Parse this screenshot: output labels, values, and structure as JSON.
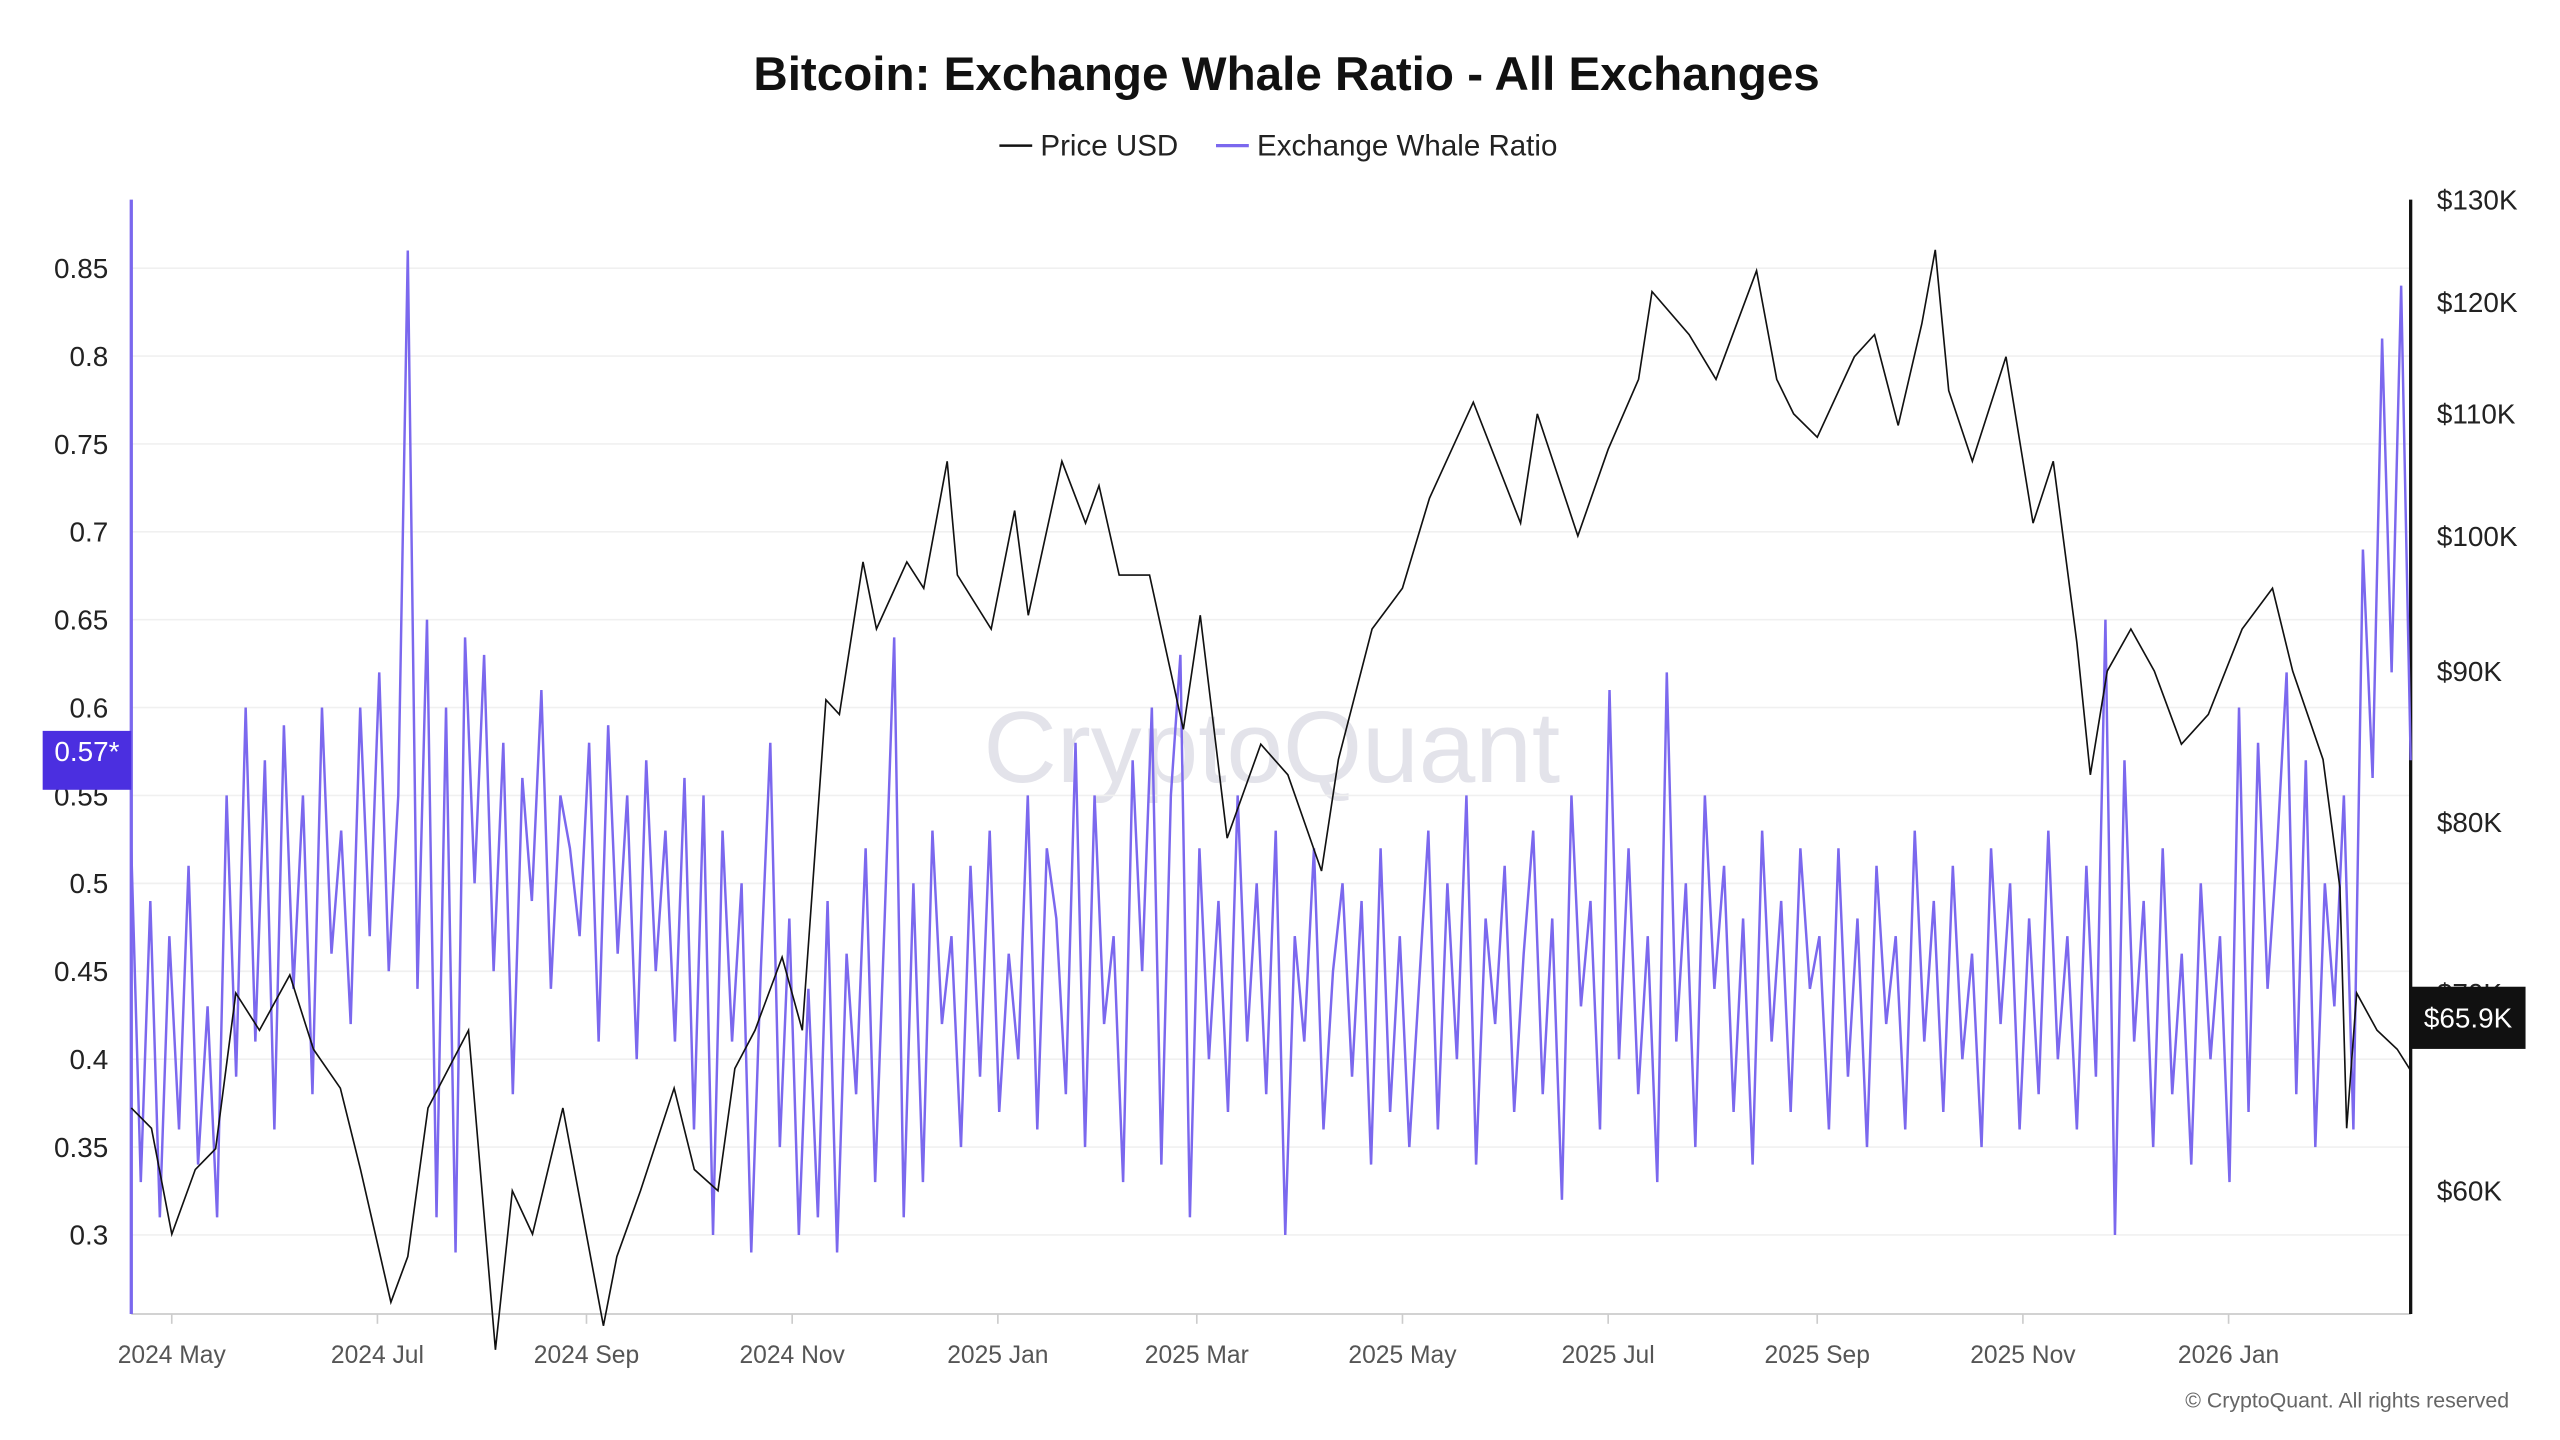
{
  "chart_data": {
    "type": "line",
    "title": "Bitcoin: Exchange Whale Ratio - All Exchanges",
    "legend": {
      "position": "top-center",
      "items": [
        "Price USD",
        "Exchange Whale Ratio"
      ]
    },
    "colors": {
      "price": "#111111",
      "whale": "#7b68ee",
      "badge_left": "#4b2fe0",
      "badge_right": "#111111"
    },
    "x_range": [
      "2024-04-19",
      "2026-02-24"
    ],
    "x_ticks": [
      {
        "date": "2024-05-01",
        "label": "2024 May"
      },
      {
        "date": "2024-07-01",
        "label": "2024 Jul"
      },
      {
        "date": "2024-09-01",
        "label": "2024 Sep"
      },
      {
        "date": "2024-11-01",
        "label": "2024 Nov"
      },
      {
        "date": "2025-01-01",
        "label": "2025 Jan"
      },
      {
        "date": "2025-03-01",
        "label": "2025 Mar"
      },
      {
        "date": "2025-05-01",
        "label": "2025 May"
      },
      {
        "date": "2025-07-01",
        "label": "2025 Jul"
      },
      {
        "date": "2025-09-01",
        "label": "2025 Sep"
      },
      {
        "date": "2025-11-01",
        "label": "2025 Nov"
      },
      {
        "date": "2026-01-01",
        "label": "2026 Jan"
      }
    ],
    "left_axis": {
      "ylim": [
        0.255,
        0.889
      ],
      "ticks": [
        0.3,
        0.35,
        0.4,
        0.45,
        0.5,
        0.55,
        0.6,
        0.65,
        0.7,
        0.75,
        0.8,
        0.85
      ]
    },
    "right_axis": {
      "scale": "log",
      "ylim": [
        54.5,
        130
      ],
      "ticks": [
        {
          "value": 60,
          "label": "$60K"
        },
        {
          "value": 70,
          "label": "$70K"
        },
        {
          "value": 80,
          "label": "$80K"
        },
        {
          "value": 90,
          "label": "$90K"
        },
        {
          "value": 100,
          "label": "$100K"
        },
        {
          "value": 110,
          "label": "$110K"
        },
        {
          "value": 120,
          "label": "$120K"
        },
        {
          "value": 130,
          "label": "$130K"
        }
      ]
    },
    "grid": "horizontal",
    "current_labels": {
      "whale": "0.57*",
      "price": "$65.9K"
    },
    "price_series_kusd": [
      [
        "2024-04-19",
        64
      ],
      [
        "2024-04-25",
        63
      ],
      [
        "2024-05-01",
        58
      ],
      [
        "2024-05-08",
        61
      ],
      [
        "2024-05-14",
        62
      ],
      [
        "2024-05-20",
        70
      ],
      [
        "2024-05-27",
        68
      ],
      [
        "2024-06-05",
        71
      ],
      [
        "2024-06-12",
        67
      ],
      [
        "2024-06-20",
        65
      ],
      [
        "2024-06-26",
        61
      ],
      [
        "2024-07-05",
        55
      ],
      [
        "2024-07-10",
        57
      ],
      [
        "2024-07-16",
        64
      ],
      [
        "2024-07-28",
        68
      ],
      [
        "2024-08-05",
        53
      ],
      [
        "2024-08-10",
        60
      ],
      [
        "2024-08-16",
        58
      ],
      [
        "2024-08-25",
        64
      ],
      [
        "2024-09-06",
        54
      ],
      [
        "2024-09-10",
        57
      ],
      [
        "2024-09-17",
        60
      ],
      [
        "2024-09-27",
        65
      ],
      [
        "2024-10-03",
        61
      ],
      [
        "2024-10-10",
        60
      ],
      [
        "2024-10-15",
        66
      ],
      [
        "2024-10-21",
        68
      ],
      [
        "2024-10-29",
        72
      ],
      [
        "2024-11-04",
        68
      ],
      [
        "2024-11-11",
        88
      ],
      [
        "2024-11-15",
        87
      ],
      [
        "2024-11-22",
        98
      ],
      [
        "2024-11-26",
        93
      ],
      [
        "2024-12-05",
        98
      ],
      [
        "2024-12-10",
        96
      ],
      [
        "2024-12-17",
        106
      ],
      [
        "2024-12-20",
        97
      ],
      [
        "2024-12-30",
        93
      ],
      [
        "2025-01-06",
        102
      ],
      [
        "2025-01-10",
        94
      ],
      [
        "2025-01-20",
        106
      ],
      [
        "2025-01-27",
        101
      ],
      [
        "2025-01-31",
        104
      ],
      [
        "2025-02-06",
        97
      ],
      [
        "2025-02-15",
        97
      ],
      [
        "2025-02-25",
        86
      ],
      [
        "2025-03-02",
        94
      ],
      [
        "2025-03-10",
        79
      ],
      [
        "2025-03-20",
        85
      ],
      [
        "2025-03-28",
        83
      ],
      [
        "2025-04-07",
        77
      ],
      [
        "2025-04-12",
        84
      ],
      [
        "2025-04-22",
        93
      ],
      [
        "2025-05-01",
        96
      ],
      [
        "2025-05-09",
        103
      ],
      [
        "2025-05-22",
        111
      ],
      [
        "2025-06-05",
        101
      ],
      [
        "2025-06-10",
        110
      ],
      [
        "2025-06-22",
        100
      ],
      [
        "2025-07-01",
        107
      ],
      [
        "2025-07-10",
        113
      ],
      [
        "2025-07-14",
        121
      ],
      [
        "2025-07-25",
        117
      ],
      [
        "2025-08-02",
        113
      ],
      [
        "2025-08-14",
        123
      ],
      [
        "2025-08-20",
        113
      ],
      [
        "2025-08-25",
        110
      ],
      [
        "2025-09-01",
        108
      ],
      [
        "2025-09-12",
        115
      ],
      [
        "2025-09-18",
        117
      ],
      [
        "2025-09-25",
        109
      ],
      [
        "2025-10-02",
        118
      ],
      [
        "2025-10-06",
        125
      ],
      [
        "2025-10-10",
        112
      ],
      [
        "2025-10-17",
        106
      ],
      [
        "2025-10-27",
        115
      ],
      [
        "2025-11-04",
        101
      ],
      [
        "2025-11-10",
        106
      ],
      [
        "2025-11-17",
        92
      ],
      [
        "2025-11-21",
        83
      ],
      [
        "2025-11-26",
        90
      ],
      [
        "2025-12-03",
        93
      ],
      [
        "2025-12-10",
        90
      ],
      [
        "2025-12-18",
        85
      ],
      [
        "2025-12-26",
        87
      ],
      [
        "2026-01-05",
        93
      ],
      [
        "2026-01-14",
        96
      ],
      [
        "2026-01-20",
        90
      ],
      [
        "2026-01-29",
        84
      ],
      [
        "2026-02-03",
        76
      ],
      [
        "2026-02-05",
        63
      ],
      [
        "2026-02-08",
        70
      ],
      [
        "2026-02-14",
        68
      ],
      [
        "2026-02-20",
        67
      ],
      [
        "2026-02-24",
        65.9
      ]
    ],
    "whale_series": [
      0.52,
      0.33,
      0.49,
      0.31,
      0.47,
      0.36,
      0.51,
      0.34,
      0.43,
      0.31,
      0.55,
      0.39,
      0.6,
      0.41,
      0.57,
      0.36,
      0.59,
      0.44,
      0.55,
      0.38,
      0.6,
      0.46,
      0.53,
      0.42,
      0.6,
      0.47,
      0.62,
      0.45,
      0.55,
      0.86,
      0.44,
      0.65,
      0.31,
      0.6,
      0.29,
      0.64,
      0.5,
      0.63,
      0.45,
      0.58,
      0.38,
      0.56,
      0.49,
      0.61,
      0.44,
      0.55,
      0.52,
      0.47,
      0.58,
      0.41,
      0.59,
      0.46,
      0.55,
      0.4,
      0.57,
      0.45,
      0.53,
      0.41,
      0.56,
      0.36,
      0.55,
      0.3,
      0.53,
      0.41,
      0.5,
      0.29,
      0.45,
      0.58,
      0.35,
      0.48,
      0.3,
      0.44,
      0.31,
      0.49,
      0.29,
      0.46,
      0.38,
      0.52,
      0.33,
      0.48,
      0.64,
      0.31,
      0.5,
      0.33,
      0.53,
      0.42,
      0.47,
      0.35,
      0.51,
      0.39,
      0.53,
      0.37,
      0.46,
      0.4,
      0.55,
      0.36,
      0.52,
      0.48,
      0.38,
      0.58,
      0.35,
      0.55,
      0.42,
      0.47,
      0.33,
      0.57,
      0.45,
      0.6,
      0.34,
      0.55,
      0.63,
      0.31,
      0.52,
      0.4,
      0.49,
      0.37,
      0.55,
      0.41,
      0.5,
      0.38,
      0.53,
      0.3,
      0.47,
      0.41,
      0.52,
      0.36,
      0.45,
      0.5,
      0.39,
      0.49,
      0.34,
      0.52,
      0.37,
      0.47,
      0.35,
      0.44,
      0.53,
      0.36,
      0.5,
      0.4,
      0.55,
      0.34,
      0.48,
      0.42,
      0.51,
      0.37,
      0.46,
      0.53,
      0.38,
      0.48,
      0.32,
      0.55,
      0.43,
      0.49,
      0.36,
      0.61,
      0.4,
      0.52,
      0.38,
      0.47,
      0.33,
      0.62,
      0.41,
      0.5,
      0.35,
      0.55,
      0.44,
      0.51,
      0.37,
      0.48,
      0.34,
      0.53,
      0.41,
      0.49,
      0.37,
      0.52,
      0.44,
      0.47,
      0.36,
      0.52,
      0.39,
      0.48,
      0.35,
      0.51,
      0.42,
      0.47,
      0.36,
      0.53,
      0.41,
      0.49,
      0.37,
      0.51,
      0.4,
      0.46,
      0.35,
      0.52,
      0.42,
      0.5,
      0.36,
      0.48,
      0.38,
      0.53,
      0.4,
      0.47,
      0.36,
      0.51,
      0.39,
      0.65,
      0.3,
      0.57,
      0.41,
      0.49,
      0.35,
      0.52,
      0.38,
      0.46,
      0.34,
      0.5,
      0.4,
      0.47,
      0.33,
      0.6,
      0.37,
      0.58,
      0.44,
      0.52,
      0.62,
      0.38,
      0.57,
      0.35,
      0.5,
      0.43,
      0.55,
      0.36,
      0.69,
      0.56,
      0.81,
      0.62,
      0.84,
      0.57
    ],
    "watermark": "CryptoQuant",
    "footer": "© CryptoQuant. All rights reserved"
  }
}
